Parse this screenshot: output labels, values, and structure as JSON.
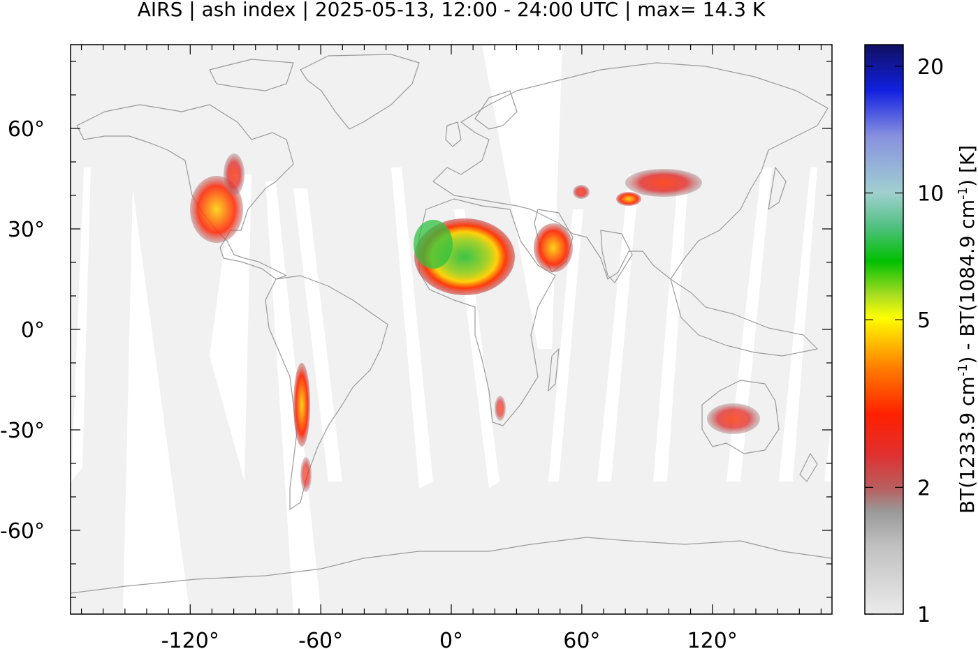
{
  "title": "AIRS | ash index | 2025-05-13, 12:00 - 24:00 UTC | max= 14.3 K",
  "map": {
    "x_ticks": [
      {
        "value": -120,
        "label": "-120°"
      },
      {
        "value": -60,
        "label": "-60°"
      },
      {
        "value": 0,
        "label": "0°"
      },
      {
        "value": 60,
        "label": "60°"
      },
      {
        "value": 120,
        "label": "120°"
      }
    ],
    "y_ticks": [
      {
        "value": 60,
        "label": "60°"
      },
      {
        "value": 30,
        "label": "30°"
      },
      {
        "value": 0,
        "label": "0°"
      },
      {
        "value": -30,
        "label": "-30°"
      },
      {
        "value": -60,
        "label": "-60°"
      }
    ],
    "lon_range": [
      -175,
      175
    ],
    "lat_range": [
      -85,
      85
    ],
    "background_color": "#f1f1f1",
    "coastline_color": "#9a9a9a",
    "swath_gap_color": "#ffffff"
  },
  "colorbar": {
    "label_prefix": "BT(1233.9 cm",
    "label_mid": ") - BT(1084.9 cm",
    "label_suffix": ") [K]",
    "superscript": "-1",
    "scale": "log",
    "range": [
      1,
      22.5
    ],
    "ticks": [
      {
        "value": 1,
        "label": "1"
      },
      {
        "value": 2,
        "label": "2"
      },
      {
        "value": 5,
        "label": "5"
      },
      {
        "value": 10,
        "label": "10"
      },
      {
        "value": 20,
        "label": "20"
      }
    ],
    "colors": [
      "#ebebeb",
      "#c0c0c0",
      "#9a9a9a",
      "#b86060",
      "#e03030",
      "#ff2000",
      "#ff7a00",
      "#ffd000",
      "#ffff00",
      "#aadd22",
      "#00c000",
      "#50c080",
      "#a0d0d0",
      "#8890e0",
      "#1020e0",
      "#101060"
    ]
  },
  "ash_regions": [
    {
      "name": "western-north-america",
      "lon_range": [
        -118,
        -100
      ],
      "lat_range": [
        25,
        50
      ],
      "peak_k": 4
    },
    {
      "name": "sahara",
      "lon_range": [
        -10,
        28
      ],
      "lat_range": [
        8,
        33
      ],
      "peak_k": 14.3
    },
    {
      "name": "arabian-peninsula",
      "lon_range": [
        38,
        56
      ],
      "lat_range": [
        15,
        32
      ],
      "peak_k": 5
    },
    {
      "name": "central-asia",
      "lon_range": [
        75,
        112
      ],
      "lat_range": [
        36,
        46
      ],
      "peak_k": 4
    },
    {
      "name": "andes",
      "lon_range": [
        -72,
        -66
      ],
      "lat_range": [
        -50,
        -10
      ],
      "peak_k": 5
    },
    {
      "name": "australia",
      "lon_range": [
        115,
        142
      ],
      "lat_range": [
        -35,
        -20
      ],
      "peak_k": 3
    },
    {
      "name": "southern-africa",
      "lon_range": [
        18,
        24
      ],
      "lat_range": [
        -33,
        -24
      ],
      "peak_k": 2.5
    }
  ]
}
